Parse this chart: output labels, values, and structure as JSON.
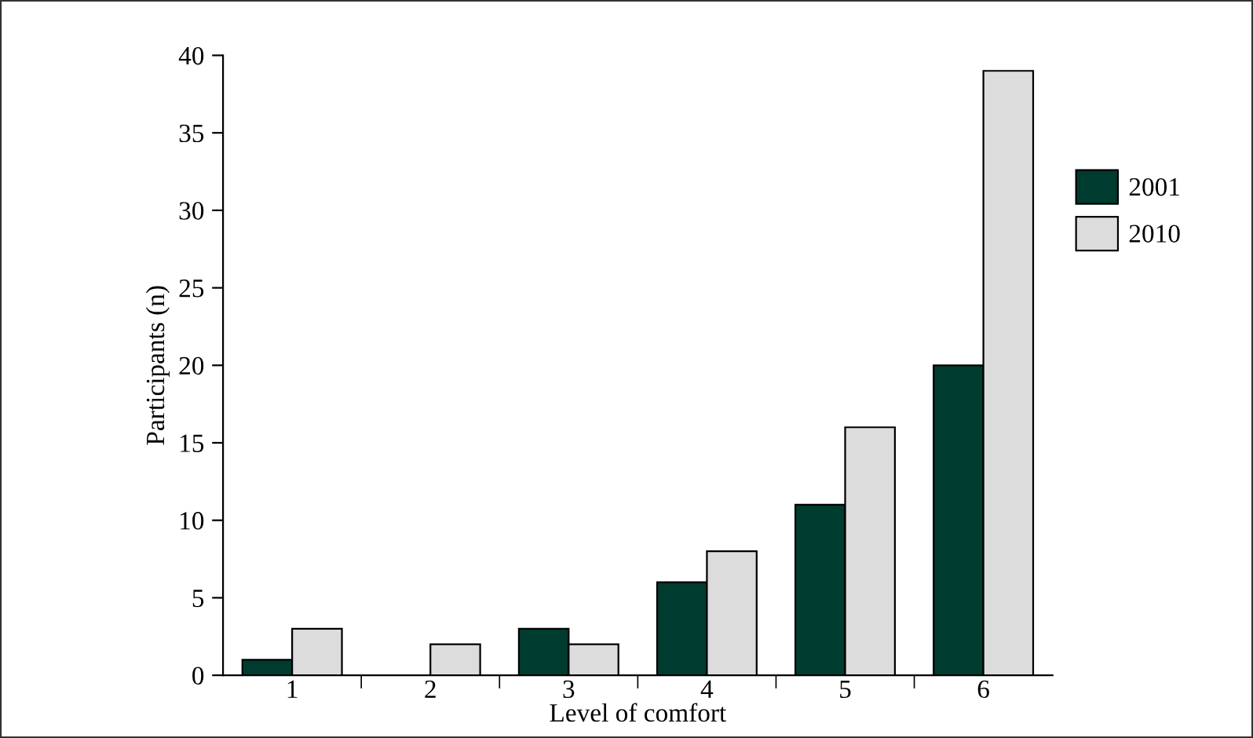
{
  "chart_data": {
    "type": "bar",
    "xlabel": "Level of comfort",
    "ylabel": "Participants (n)",
    "categories": [
      "1",
      "2",
      "3",
      "4",
      "5",
      "6"
    ],
    "series": [
      {
        "name": "2001",
        "color": "#003b30",
        "values": [
          1,
          0,
          3,
          6,
          11,
          20
        ]
      },
      {
        "name": "2010",
        "color": "#dcdcdc",
        "values": [
          3,
          2,
          2,
          8,
          16,
          39
        ]
      }
    ],
    "ylim": [
      0,
      40
    ],
    "yticks": [
      0,
      5,
      10,
      15,
      20,
      25,
      30,
      35,
      40
    ],
    "grid": false,
    "legend": "right"
  }
}
